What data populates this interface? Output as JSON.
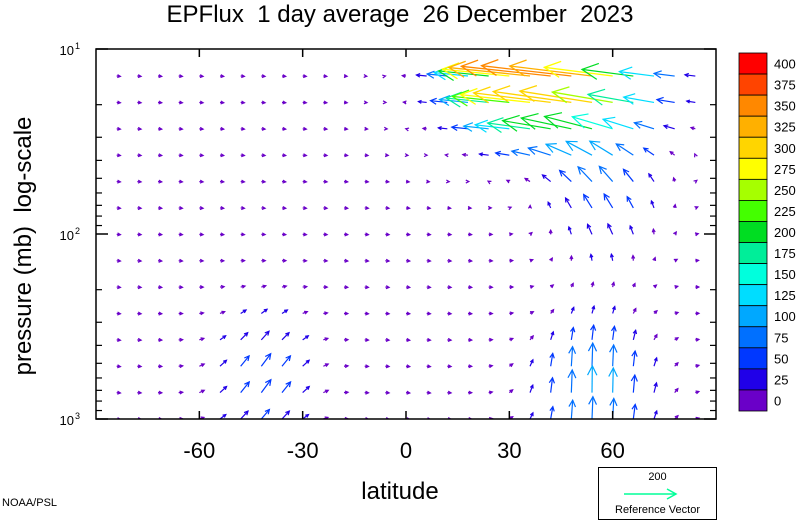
{
  "chart_data": {
    "type": "vector-field",
    "title": "EPFlux  1 day average  26 December  2023",
    "xlabel": "latitude",
    "ylabel": "pressure (mb)  log-scale",
    "xlim": [
      -90,
      90
    ],
    "ylim": [
      1000,
      10
    ],
    "yscale": "log",
    "x_ticks": [
      -60,
      -30,
      0,
      30,
      60
    ],
    "y_ticks": [
      {
        "base": "10",
        "exp": "1"
      },
      {
        "base": "10",
        "exp": "2"
      },
      {
        "base": "10",
        "exp": "3"
      }
    ],
    "colorbar": {
      "levels": [
        "400",
        "375",
        "350",
        "325",
        "300",
        "275",
        "250",
        "225",
        "200",
        "175",
        "150",
        "125",
        "100",
        "75",
        "50",
        "25",
        "0"
      ],
      "colors": [
        "#ff0000",
        "#ff4400",
        "#ff8800",
        "#ffb000",
        "#ffd500",
        "#ffff00",
        "#a6ff00",
        "#44ff00",
        "#00dd22",
        "#00ee99",
        "#00ffdd",
        "#00ddff",
        "#00a8ff",
        "#0070ff",
        "#0038ff",
        "#2000e8",
        "#6a00c8"
      ]
    },
    "reference_vector": {
      "value": "200",
      "label": "Reference Vector",
      "color": "#00ff99"
    }
  },
  "credit": "NOAA/PSL"
}
